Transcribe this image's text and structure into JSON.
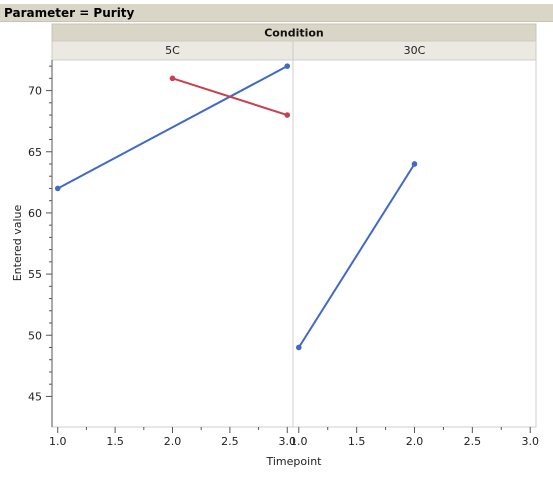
{
  "header": {
    "title": "Parameter = Purity"
  },
  "chart_data": {
    "type": "line",
    "group_label": "Condition",
    "xlabel": "Timepoint",
    "ylabel": "Entered value",
    "ylim": [
      42.5,
      72.5
    ],
    "yticks": [
      45,
      50,
      55,
      60,
      65,
      70
    ],
    "xlim": [
      0.95,
      3.05
    ],
    "xticks": [
      "1.0",
      "1.5",
      "2.0",
      "2.5",
      "3.0"
    ],
    "grid": false,
    "panels": [
      {
        "label": "5C",
        "series": [
          {
            "color": "#4169c8",
            "x": [
              1.0,
              3.0
            ],
            "y": [
              62,
              72
            ]
          },
          {
            "color": "#c8404e",
            "x": [
              2.0,
              3.0
            ],
            "y": [
              71,
              68
            ]
          }
        ]
      },
      {
        "label": "30C",
        "series": [
          {
            "color": "#4169c8",
            "x": [
              1.0,
              2.0
            ],
            "y": [
              49,
              64
            ]
          }
        ]
      }
    ]
  }
}
